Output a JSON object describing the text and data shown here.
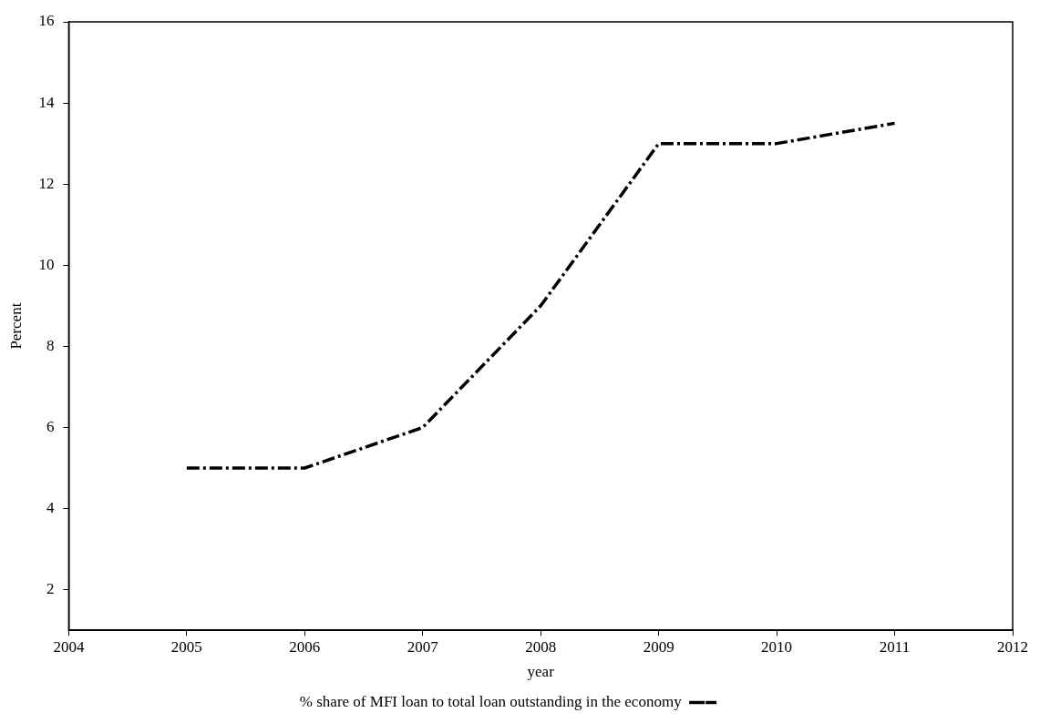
{
  "chart_data": {
    "type": "line",
    "xlabel": "year",
    "ylabel": "Percent",
    "x": [
      2005,
      2006,
      2007,
      2008,
      2009,
      2010,
      2011
    ],
    "series": [
      {
        "name": "% share of MFI loan to total loan outstanding in the economy",
        "color": "#000000",
        "values": [
          5,
          5,
          6,
          9,
          13,
          13,
          13.5
        ]
      }
    ],
    "xlim": [
      2004,
      2012
    ],
    "xticks": [
      2004,
      2005,
      2006,
      2007,
      2008,
      2009,
      2010,
      2011,
      2012
    ],
    "ylim": [
      1,
      16
    ],
    "yticks": [
      2,
      4,
      6,
      8,
      10,
      12,
      14,
      16
    ],
    "grid": false,
    "legend": "bottom",
    "marker": "none",
    "line_style": "dashed"
  }
}
